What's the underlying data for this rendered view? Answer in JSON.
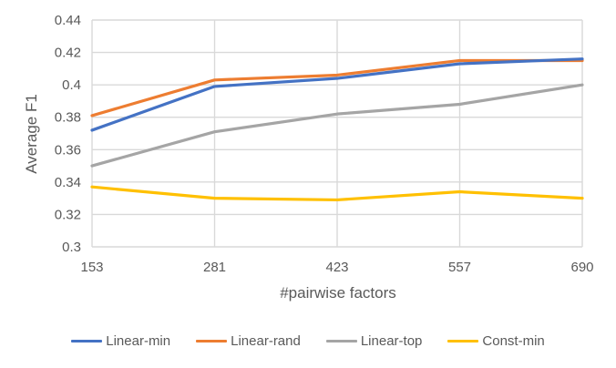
{
  "chart_data": {
    "type": "line",
    "title": "",
    "xlabel": "#pairwise factors",
    "ylabel": "Average F1",
    "categories": [
      "153",
      "281",
      "423",
      "557",
      "690"
    ],
    "ylim": [
      0.3,
      0.44
    ],
    "yticks": [
      "0.3",
      "0.32",
      "0.34",
      "0.36",
      "0.38",
      "0.4",
      "0.42",
      "0.44"
    ],
    "grid": true,
    "legend_position": "bottom",
    "series": [
      {
        "name": "Linear-min",
        "color": "#4472C4",
        "values": [
          0.372,
          0.399,
          0.404,
          0.413,
          0.416
        ]
      },
      {
        "name": "Linear-rand",
        "color": "#ED7D31",
        "values": [
          0.381,
          0.403,
          0.406,
          0.415,
          0.415
        ]
      },
      {
        "name": "Linear-top",
        "color": "#A5A5A5",
        "values": [
          0.35,
          0.371,
          0.382,
          0.388,
          0.4
        ]
      },
      {
        "name": "Const-min",
        "color": "#FFC000",
        "values": [
          0.337,
          0.33,
          0.329,
          0.334,
          0.33
        ]
      }
    ]
  }
}
